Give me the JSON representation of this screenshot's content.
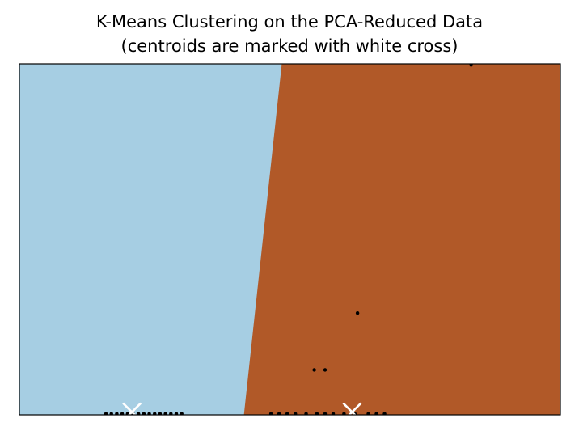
{
  "chart_data": {
    "type": "scatter",
    "title_lines": [
      "K-Means Clustering on the PCA-Reduced Data",
      "(centroids are marked with white cross)"
    ],
    "xlabel": "",
    "ylabel": "",
    "xlim": [
      0,
      100
    ],
    "ylim": [
      0,
      100
    ],
    "axis_ticks": "none",
    "grid": false,
    "legend": "none",
    "regions": [
      {
        "cluster": 0,
        "color": "#a6cee3",
        "side": "left",
        "boundary_x_at_ymax": 48.5,
        "boundary_x_at_ymin": 41.5
      },
      {
        "cluster": 1,
        "color": "#b15928",
        "side": "right"
      }
    ],
    "points_color": "#000000",
    "points": [
      {
        "x": 16.0,
        "y": 0.3
      },
      {
        "x": 17.0,
        "y": 0.3
      },
      {
        "x": 18.0,
        "y": 0.3
      },
      {
        "x": 19.0,
        "y": 0.3
      },
      {
        "x": 20.0,
        "y": 0.3
      },
      {
        "x": 21.0,
        "y": 0.3
      },
      {
        "x": 22.0,
        "y": 0.3
      },
      {
        "x": 23.0,
        "y": 0.3
      },
      {
        "x": 24.0,
        "y": 0.3
      },
      {
        "x": 25.0,
        "y": 0.3
      },
      {
        "x": 26.0,
        "y": 0.3
      },
      {
        "x": 27.0,
        "y": 0.3
      },
      {
        "x": 28.0,
        "y": 0.3
      },
      {
        "x": 29.0,
        "y": 0.3
      },
      {
        "x": 30.0,
        "y": 0.3
      },
      {
        "x": 46.5,
        "y": 0.3
      },
      {
        "x": 48.0,
        "y": 0.3
      },
      {
        "x": 49.5,
        "y": 0.3
      },
      {
        "x": 51.0,
        "y": 0.3
      },
      {
        "x": 53.0,
        "y": 0.3
      },
      {
        "x": 55.0,
        "y": 0.3
      },
      {
        "x": 56.5,
        "y": 0.3
      },
      {
        "x": 58.0,
        "y": 0.3
      },
      {
        "x": 60.0,
        "y": 0.3
      },
      {
        "x": 62.0,
        "y": 0.3
      },
      {
        "x": 64.5,
        "y": 0.3
      },
      {
        "x": 66.0,
        "y": 0.3
      },
      {
        "x": 67.5,
        "y": 0.3
      },
      {
        "x": 54.5,
        "y": 12.8
      },
      {
        "x": 56.5,
        "y": 12.8
      },
      {
        "x": 62.5,
        "y": 29.0
      },
      {
        "x": 83.5,
        "y": 99.7
      }
    ],
    "centroids": [
      {
        "x": 20.8,
        "y": 0.8
      },
      {
        "x": 61.5,
        "y": 0.8
      }
    ],
    "centroid_color": "#ffffff"
  }
}
